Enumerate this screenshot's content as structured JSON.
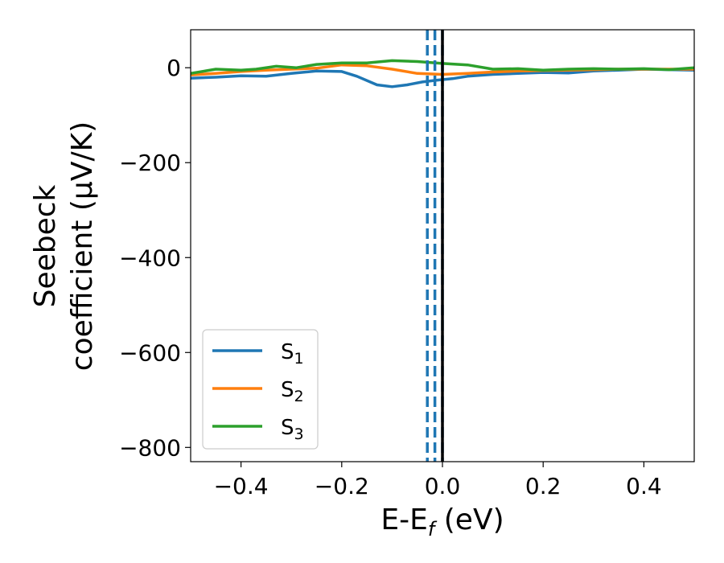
{
  "chart_data": {
    "type": "line",
    "xlabel": "E-E_f (eV)",
    "ylabel_line1": "Seebeck",
    "ylabel_line2": "coefficient  (μV/K)",
    "xlim": [
      -0.5,
      0.5
    ],
    "ylim": [
      -830,
      80
    ],
    "x_ticks": [
      -0.4,
      -0.2,
      0.0,
      0.2,
      0.4
    ],
    "x_tick_labels": [
      "−0.4",
      "−0.2",
      "0.0",
      "0.2",
      "0.4"
    ],
    "y_ticks": [
      0,
      -200,
      -400,
      -600,
      -800
    ],
    "y_tick_labels": [
      "0",
      "−200",
      "−400",
      "−600",
      "−800"
    ],
    "vertical_lines": [
      {
        "x": -0.03,
        "style": "dashed",
        "color": "#1f77b4"
      },
      {
        "x": -0.015,
        "style": "dashed",
        "color": "#1f77b4"
      },
      {
        "x": 0.0,
        "style": "dashed",
        "color": "#1f77b4"
      },
      {
        "x": 0.0,
        "style": "solid",
        "color": "#000000"
      }
    ],
    "legend_position": "lower-left",
    "series": [
      {
        "name": "S1",
        "name_main": "S",
        "name_sub": "1",
        "color": "#1f77b4",
        "x": [
          -0.5,
          -0.45,
          -0.4,
          -0.35,
          -0.3,
          -0.25,
          -0.2,
          -0.17,
          -0.13,
          -0.1,
          -0.07,
          -0.04,
          -0.01,
          0.02,
          0.05,
          0.1,
          0.15,
          0.2,
          0.25,
          0.3,
          0.35,
          0.4,
          0.45,
          0.5
        ],
        "y": [
          -22,
          -20,
          -17,
          -18,
          -12,
          -7,
          -8,
          -18,
          -36,
          -40,
          -36,
          -30,
          -26,
          -23,
          -18,
          -14,
          -12,
          -10,
          -11,
          -7,
          -5,
          -3,
          -4,
          -5
        ]
      },
      {
        "name": "S2",
        "name_main": "S",
        "name_sub": "2",
        "color": "#ff7f0e",
        "x": [
          -0.5,
          -0.45,
          -0.4,
          -0.35,
          -0.3,
          -0.25,
          -0.2,
          -0.15,
          -0.1,
          -0.05,
          0.0,
          0.05,
          0.1,
          0.15,
          0.2,
          0.25,
          0.3,
          0.35,
          0.4,
          0.45,
          0.5
        ],
        "y": [
          -15,
          -12,
          -8,
          -5,
          -3,
          -1,
          6,
          4,
          -3,
          -12,
          -14,
          -12,
          -9,
          -7,
          -6,
          -5,
          -4,
          -3,
          -3,
          -3,
          -3
        ]
      },
      {
        "name": "S3",
        "name_main": "S",
        "name_sub": "3",
        "color": "#2ca02c",
        "x": [
          -0.5,
          -0.45,
          -0.4,
          -0.37,
          -0.33,
          -0.29,
          -0.25,
          -0.2,
          -0.15,
          -0.1,
          -0.05,
          0.0,
          0.05,
          0.1,
          0.15,
          0.2,
          0.25,
          0.3,
          0.35,
          0.4,
          0.45,
          0.5
        ],
        "y": [
          -12,
          -3,
          -5,
          -3,
          3,
          0,
          7,
          10,
          10,
          15,
          13,
          9,
          6,
          -3,
          -2,
          -5,
          -3,
          -2,
          -3,
          -2,
          -4,
          0
        ]
      }
    ]
  }
}
